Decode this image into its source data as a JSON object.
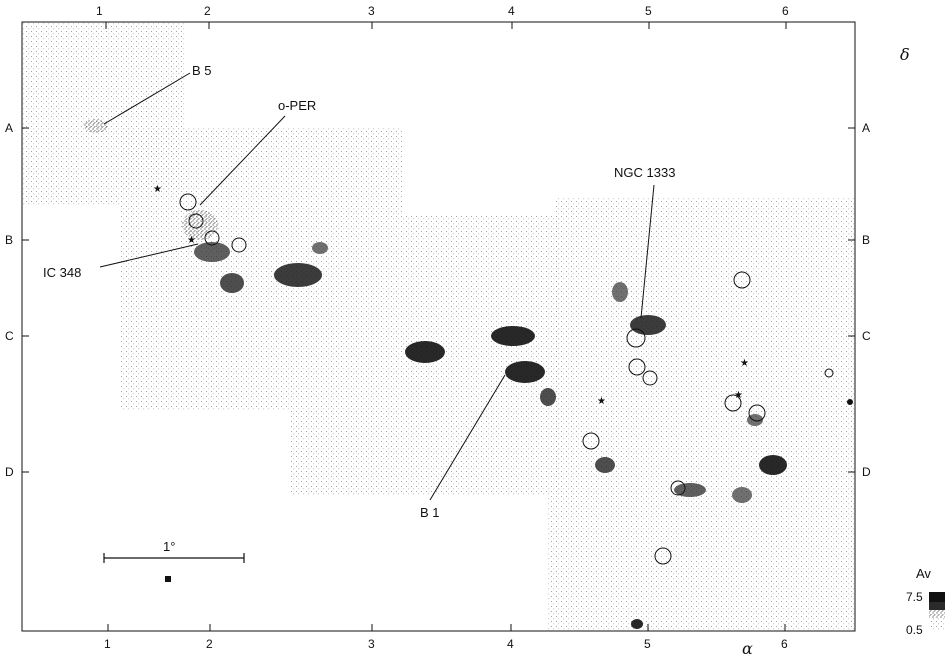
{
  "top_ticks": [
    "1",
    "2",
    "3",
    "4",
    "5",
    "6"
  ],
  "bottom_ticks": [
    "1",
    "2",
    "3",
    "4",
    "5",
    "6"
  ],
  "row_labels": [
    "A",
    "B",
    "C",
    "D"
  ],
  "axis_right": "δ",
  "axis_bottom": "α",
  "labels": {
    "b5": "B 5",
    "oper": "o-PER",
    "ic348": "IC 348",
    "ngc1333": "NGC 1333",
    "b1": "B 1"
  },
  "scale_bar": "1°",
  "legend": {
    "title": "Av",
    "max": "7.5",
    "min": "0.5"
  }
}
